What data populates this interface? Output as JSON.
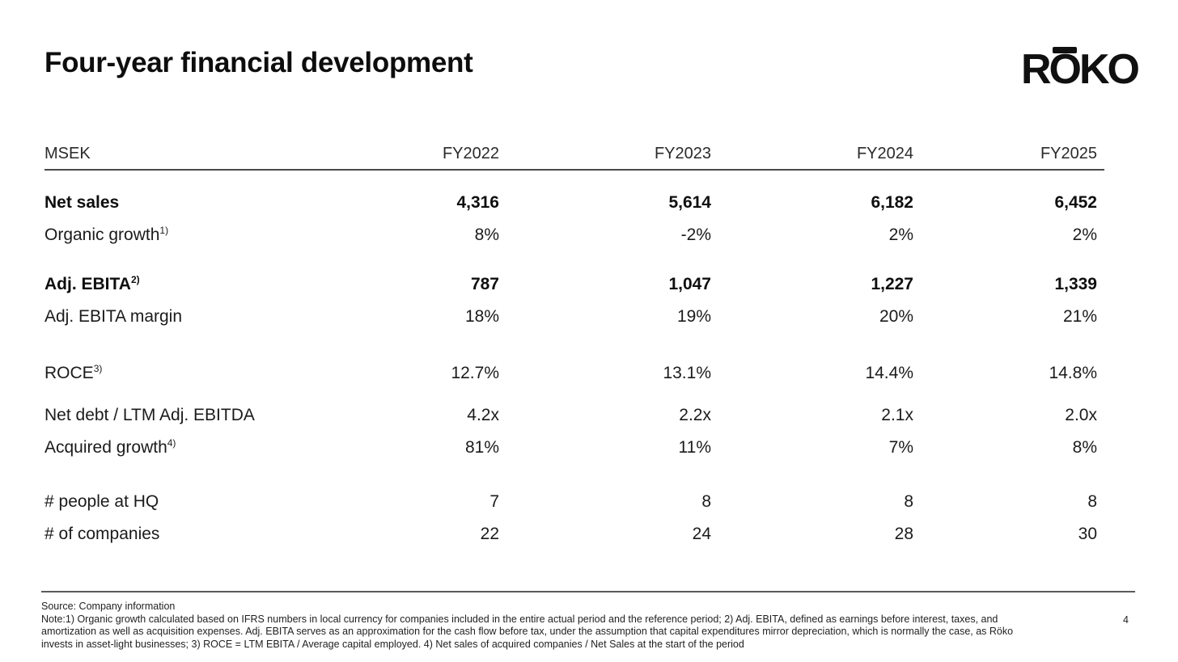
{
  "title": "Four-year financial development",
  "logo": {
    "letters": [
      "R",
      "O",
      "K",
      "O"
    ],
    "name": "RŌKO"
  },
  "table": {
    "unit_label": "MSEK",
    "columns": [
      "FY2022",
      "FY2023",
      "FY2024",
      "FY2025"
    ],
    "groups": [
      {
        "rows": [
          {
            "label": "Net sales",
            "sup": "",
            "bold": true,
            "values": [
              "4,316",
              "5,614",
              "6,182",
              "6,452"
            ]
          },
          {
            "label": "Organic growth",
            "sup": "1)",
            "bold": false,
            "values": [
              "8%",
              "-2%",
              "2%",
              "2%"
            ]
          }
        ]
      },
      {
        "rows": [
          {
            "label": "Adj. EBITA",
            "sup": "2)",
            "bold": true,
            "values": [
              "787",
              "1,047",
              "1,227",
              "1,339"
            ]
          },
          {
            "label": "Adj. EBITA margin",
            "sup": "",
            "bold": false,
            "values": [
              "18%",
              "19%",
              "20%",
              "21%"
            ]
          }
        ]
      },
      {
        "rows": [
          {
            "label": "ROCE",
            "sup": "3)",
            "bold": false,
            "values": [
              "12.7%",
              "13.1%",
              "14.4%",
              "14.8%"
            ]
          }
        ]
      },
      {
        "rows": [
          {
            "label": "Net debt / LTM Adj. EBITDA",
            "sup": "",
            "bold": false,
            "values": [
              "4.2x",
              "2.2x",
              "2.1x",
              "2.0x"
            ]
          },
          {
            "label": "Acquired growth",
            "sup": "4)",
            "bold": false,
            "values": [
              "81%",
              "11%",
              "7%",
              "8%"
            ]
          }
        ]
      },
      {
        "rows": [
          {
            "label": "# people at HQ",
            "sup": "",
            "bold": false,
            "values": [
              "7",
              "8",
              "8",
              "8"
            ]
          },
          {
            "label": "# of companies",
            "sup": "",
            "bold": false,
            "values": [
              "22",
              "24",
              "28",
              "30"
            ]
          }
        ]
      }
    ]
  },
  "footer": {
    "source": "Source: Company information",
    "note_lines": [
      "Note:1) Organic growth calculated based on IFRS numbers in local currency for companies included in the entire actual period and the reference period; 2) Adj. EBITA, defined as earnings before interest, taxes, and",
      "amortization as well as acquisition expenses. Adj. EBITA serves as an approximation for the cash flow before tax, under the assumption that capital expenditures mirror depreciation, which is normally the case, as Röko",
      "invests in asset-light businesses; 3) ROCE = LTM EBITA / Average capital employed. 4) Net sales of acquired companies / Net Sales at the start of the period"
    ],
    "page_number": "4"
  }
}
